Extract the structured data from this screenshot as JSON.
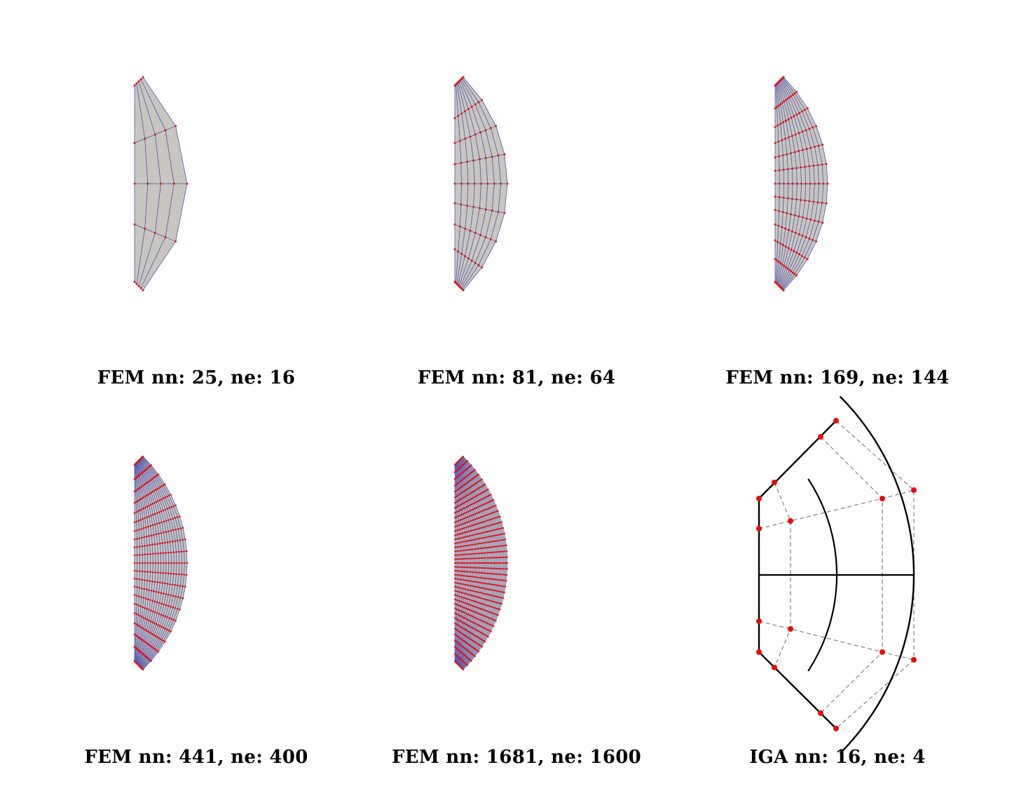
{
  "panels": [
    {
      "id": "fem-a",
      "kind": "fem",
      "caption": "FEM nn: 25, ne: 16",
      "divisions": 4
    },
    {
      "id": "fem-b",
      "kind": "fem",
      "caption": "FEM nn: 81, ne: 64",
      "divisions": 8
    },
    {
      "id": "fem-c",
      "kind": "fem",
      "caption": "FEM nn: 169, ne: 144",
      "divisions": 12
    },
    {
      "id": "fem-d",
      "kind": "fem",
      "caption": "FEM nn: 441, ne: 400",
      "divisions": 20
    },
    {
      "id": "fem-e",
      "kind": "fem",
      "caption": "FEM nn: 1681, ne: 1600",
      "divisions": 40
    },
    {
      "id": "iga",
      "kind": "iga",
      "caption": "IGA nn: 16, ne: 4"
    }
  ],
  "colors": {
    "mesh_fill": "#c8c6bf",
    "element_edge": "#4a4fb0",
    "node": "#e0141a",
    "iga_curve": "#000000",
    "control_net": "#808080",
    "control_point": "#e80c0c"
  }
}
